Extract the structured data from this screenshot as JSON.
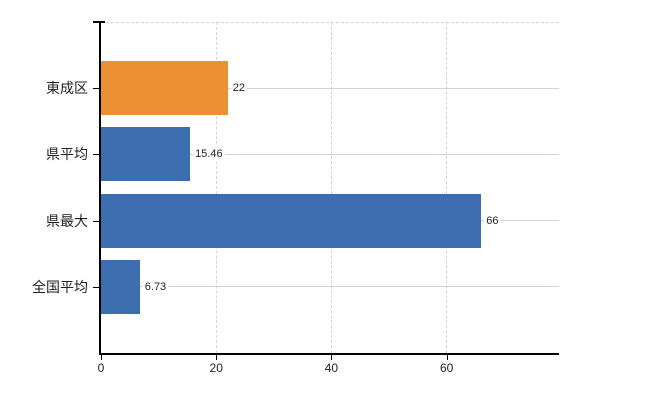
{
  "chart_data": {
    "type": "bar",
    "orientation": "horizontal",
    "title": "",
    "categories": [
      "東成区",
      "県平均",
      "県最大",
      "全国平均"
    ],
    "values": [
      22,
      15.46,
      66,
      6.73
    ],
    "value_labels": [
      "22",
      "15.46",
      "66",
      "6.73"
    ],
    "bar_colors": [
      "#ec9133",
      "#3c6dae",
      "#3c6dae",
      "#3c6dae"
    ],
    "x_tick_labels": [
      "0",
      "20",
      "40",
      "60"
    ],
    "x_tick_values": [
      0,
      20,
      40,
      60
    ],
    "xlim": [
      0,
      79.5
    ],
    "legend": "none",
    "grid": {
      "horizontal_category_lines": "solid",
      "vertical_value_lines": "dashed",
      "top_border": "dashed"
    }
  },
  "colors": {
    "background": "#ffffff",
    "bar_orange": "#ec9133",
    "bar_blue": "#3c6dae",
    "grid_solid": "#ccd6cc",
    "grid_dashed": "#d8d2d8",
    "axis_line": "#000000",
    "label_text": "#222222"
  }
}
